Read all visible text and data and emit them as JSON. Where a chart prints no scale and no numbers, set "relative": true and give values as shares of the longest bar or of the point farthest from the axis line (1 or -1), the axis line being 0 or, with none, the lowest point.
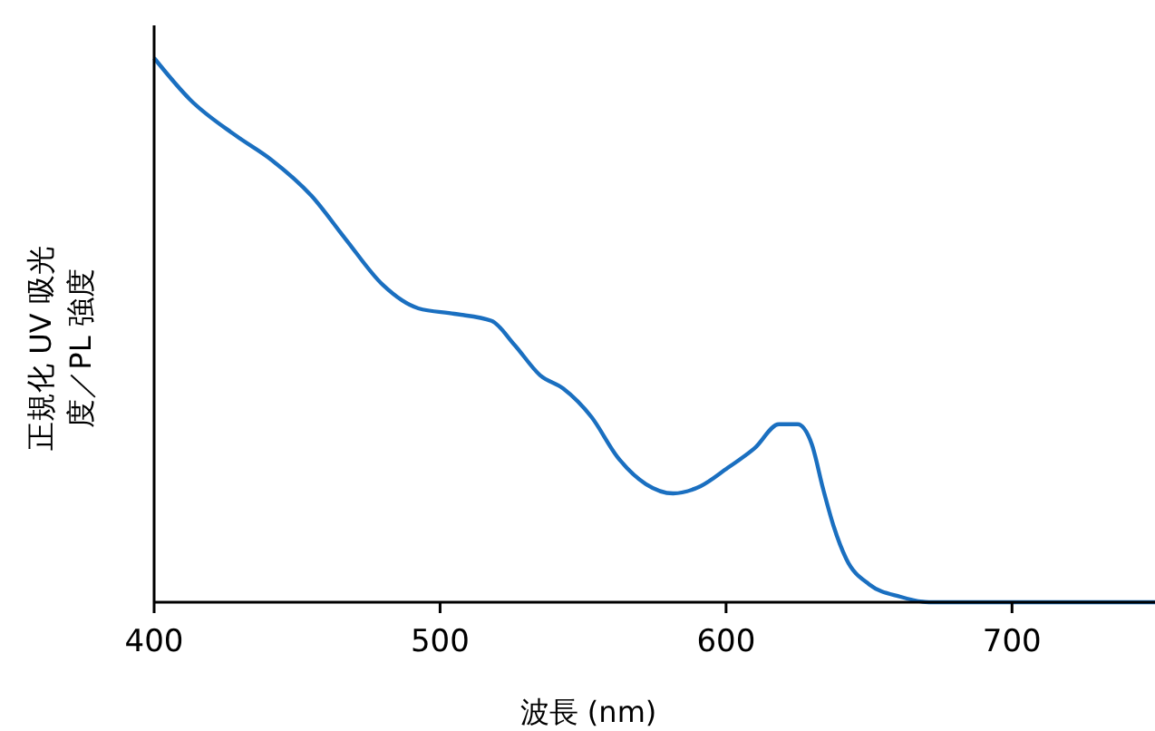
{
  "chart_data": {
    "type": "line",
    "xlabel": "波長 (nm)",
    "ylabel": "正規化 UV 吸光度／PL 強度",
    "relative": true,
    "xlim": [
      400,
      750
    ],
    "xticks": [
      400,
      500,
      600,
      700
    ],
    "grid": false,
    "series": [
      {
        "color": "#1a6fc0",
        "x": [
          400,
          412.7,
          428.7,
          441,
          455,
          467,
          480,
          492.4,
          505,
          518,
          526,
          535,
          543,
          553,
          562,
          572,
          581.5,
          591,
          600.6,
          610,
          618.5,
          625,
          630,
          634,
          637.6,
          642,
          650,
          661,
          671,
          750
        ],
        "values": [
          1.0,
          0.923,
          0.857,
          0.813,
          0.747,
          0.667,
          0.583,
          0.54,
          0.53,
          0.517,
          0.473,
          0.417,
          0.393,
          0.34,
          0.267,
          0.217,
          0.2,
          0.213,
          0.247,
          0.283,
          0.327,
          0.327,
          0.29,
          0.207,
          0.14,
          0.08,
          0.033,
          0.01,
          0,
          0
        ]
      }
    ]
  }
}
